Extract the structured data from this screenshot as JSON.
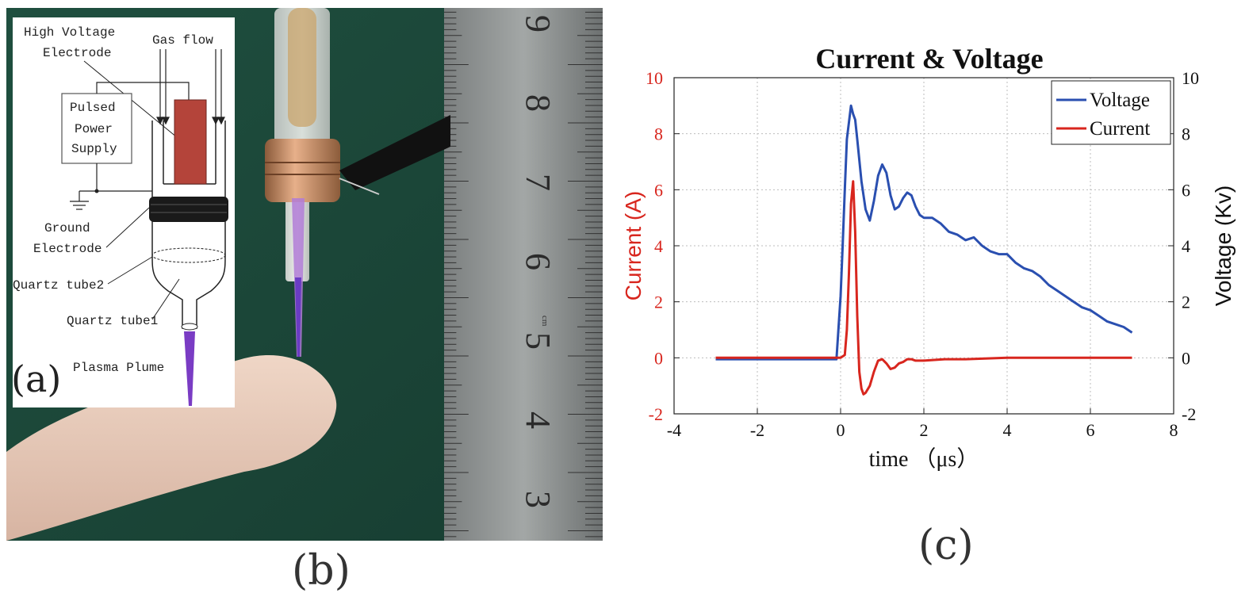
{
  "schematic": {
    "labels": {
      "high_voltage": "High Voltage",
      "electrode": "Electrode",
      "gas_flow": "Gas flow",
      "pulsed": "Pulsed",
      "power": "Power",
      "supply": "Supply",
      "ground": "Ground",
      "ground_electrode": "Electrode",
      "quartz_tube2": "Quartz tube2",
      "quartz_tube1": "Quartz tube1",
      "plasma_plume": "Plasma Plume"
    },
    "panel_letter": "(a)"
  },
  "photo": {
    "ruler_numbers": [
      "9",
      "8",
      "7",
      "6",
      "5",
      "4",
      "3"
    ],
    "ruler_unit": "cm"
  },
  "captions": {
    "b": "(b)",
    "c": "(c)"
  },
  "chart_data": {
    "type": "line",
    "title": "Current & Voltage",
    "xlabel": "time （μs）",
    "ylabel_left": "Current (A)",
    "ylabel_right": "Voltage (Kv)",
    "xlim": [
      -4,
      8
    ],
    "ylim_left": [
      -2,
      10
    ],
    "ylim_right": [
      -2,
      10
    ],
    "xticks": [
      "-4",
      "-2",
      "0",
      "2",
      "4",
      "6",
      "8"
    ],
    "yticks_left": [
      "-2",
      "0",
      "2",
      "4",
      "6",
      "8",
      "10"
    ],
    "yticks_right": [
      "-2",
      "0",
      "2",
      "4",
      "6",
      "8",
      "10"
    ],
    "grid": true,
    "legend_position": "top-right",
    "colors": {
      "voltage": "#2a4fb0",
      "current": "#d8261e",
      "left_axis": "#d8261e",
      "right_axis": "#111111"
    },
    "series": [
      {
        "name": "Voltage",
        "axis": "right",
        "x": [
          -3.0,
          -0.1,
          0.0,
          0.05,
          0.1,
          0.15,
          0.2,
          0.25,
          0.3,
          0.35,
          0.4,
          0.5,
          0.6,
          0.7,
          0.8,
          0.9,
          1.0,
          1.1,
          1.2,
          1.3,
          1.4,
          1.5,
          1.6,
          1.7,
          1.8,
          1.9,
          2.0,
          2.2,
          2.4,
          2.6,
          2.8,
          3.0,
          3.2,
          3.4,
          3.6,
          3.8,
          4.0,
          4.2,
          4.4,
          4.6,
          4.8,
          5.0,
          5.2,
          5.4,
          5.6,
          5.8,
          6.0,
          6.2,
          6.4,
          6.6,
          6.8,
          7.0
        ],
        "y": [
          -0.05,
          -0.05,
          2.2,
          4.0,
          6.0,
          7.8,
          8.4,
          9.0,
          8.7,
          8.5,
          7.8,
          6.3,
          5.3,
          4.9,
          5.6,
          6.5,
          6.9,
          6.6,
          5.8,
          5.3,
          5.4,
          5.7,
          5.9,
          5.8,
          5.4,
          5.1,
          5.0,
          5.0,
          4.8,
          4.5,
          4.4,
          4.2,
          4.3,
          4.0,
          3.8,
          3.7,
          3.7,
          3.4,
          3.2,
          3.1,
          2.9,
          2.6,
          2.4,
          2.2,
          2.0,
          1.8,
          1.7,
          1.5,
          1.3,
          1.2,
          1.1,
          0.9
        ]
      },
      {
        "name": "Current",
        "axis": "left",
        "x": [
          -3.0,
          0.0,
          0.1,
          0.15,
          0.2,
          0.25,
          0.3,
          0.35,
          0.4,
          0.45,
          0.5,
          0.55,
          0.6,
          0.7,
          0.8,
          0.9,
          1.0,
          1.1,
          1.2,
          1.3,
          1.4,
          1.5,
          1.6,
          1.7,
          1.8,
          2.0,
          2.5,
          3.0,
          4.0,
          5.0,
          6.0,
          7.0
        ],
        "y": [
          0.0,
          0.0,
          0.1,
          1.0,
          3.0,
          5.5,
          6.3,
          4.5,
          1.5,
          -0.5,
          -1.1,
          -1.3,
          -1.25,
          -1.0,
          -0.5,
          -0.1,
          -0.05,
          -0.2,
          -0.4,
          -0.35,
          -0.2,
          -0.15,
          -0.05,
          -0.05,
          -0.1,
          -0.1,
          -0.05,
          -0.05,
          0.0,
          0.0,
          0.0,
          0.0
        ]
      }
    ]
  }
}
